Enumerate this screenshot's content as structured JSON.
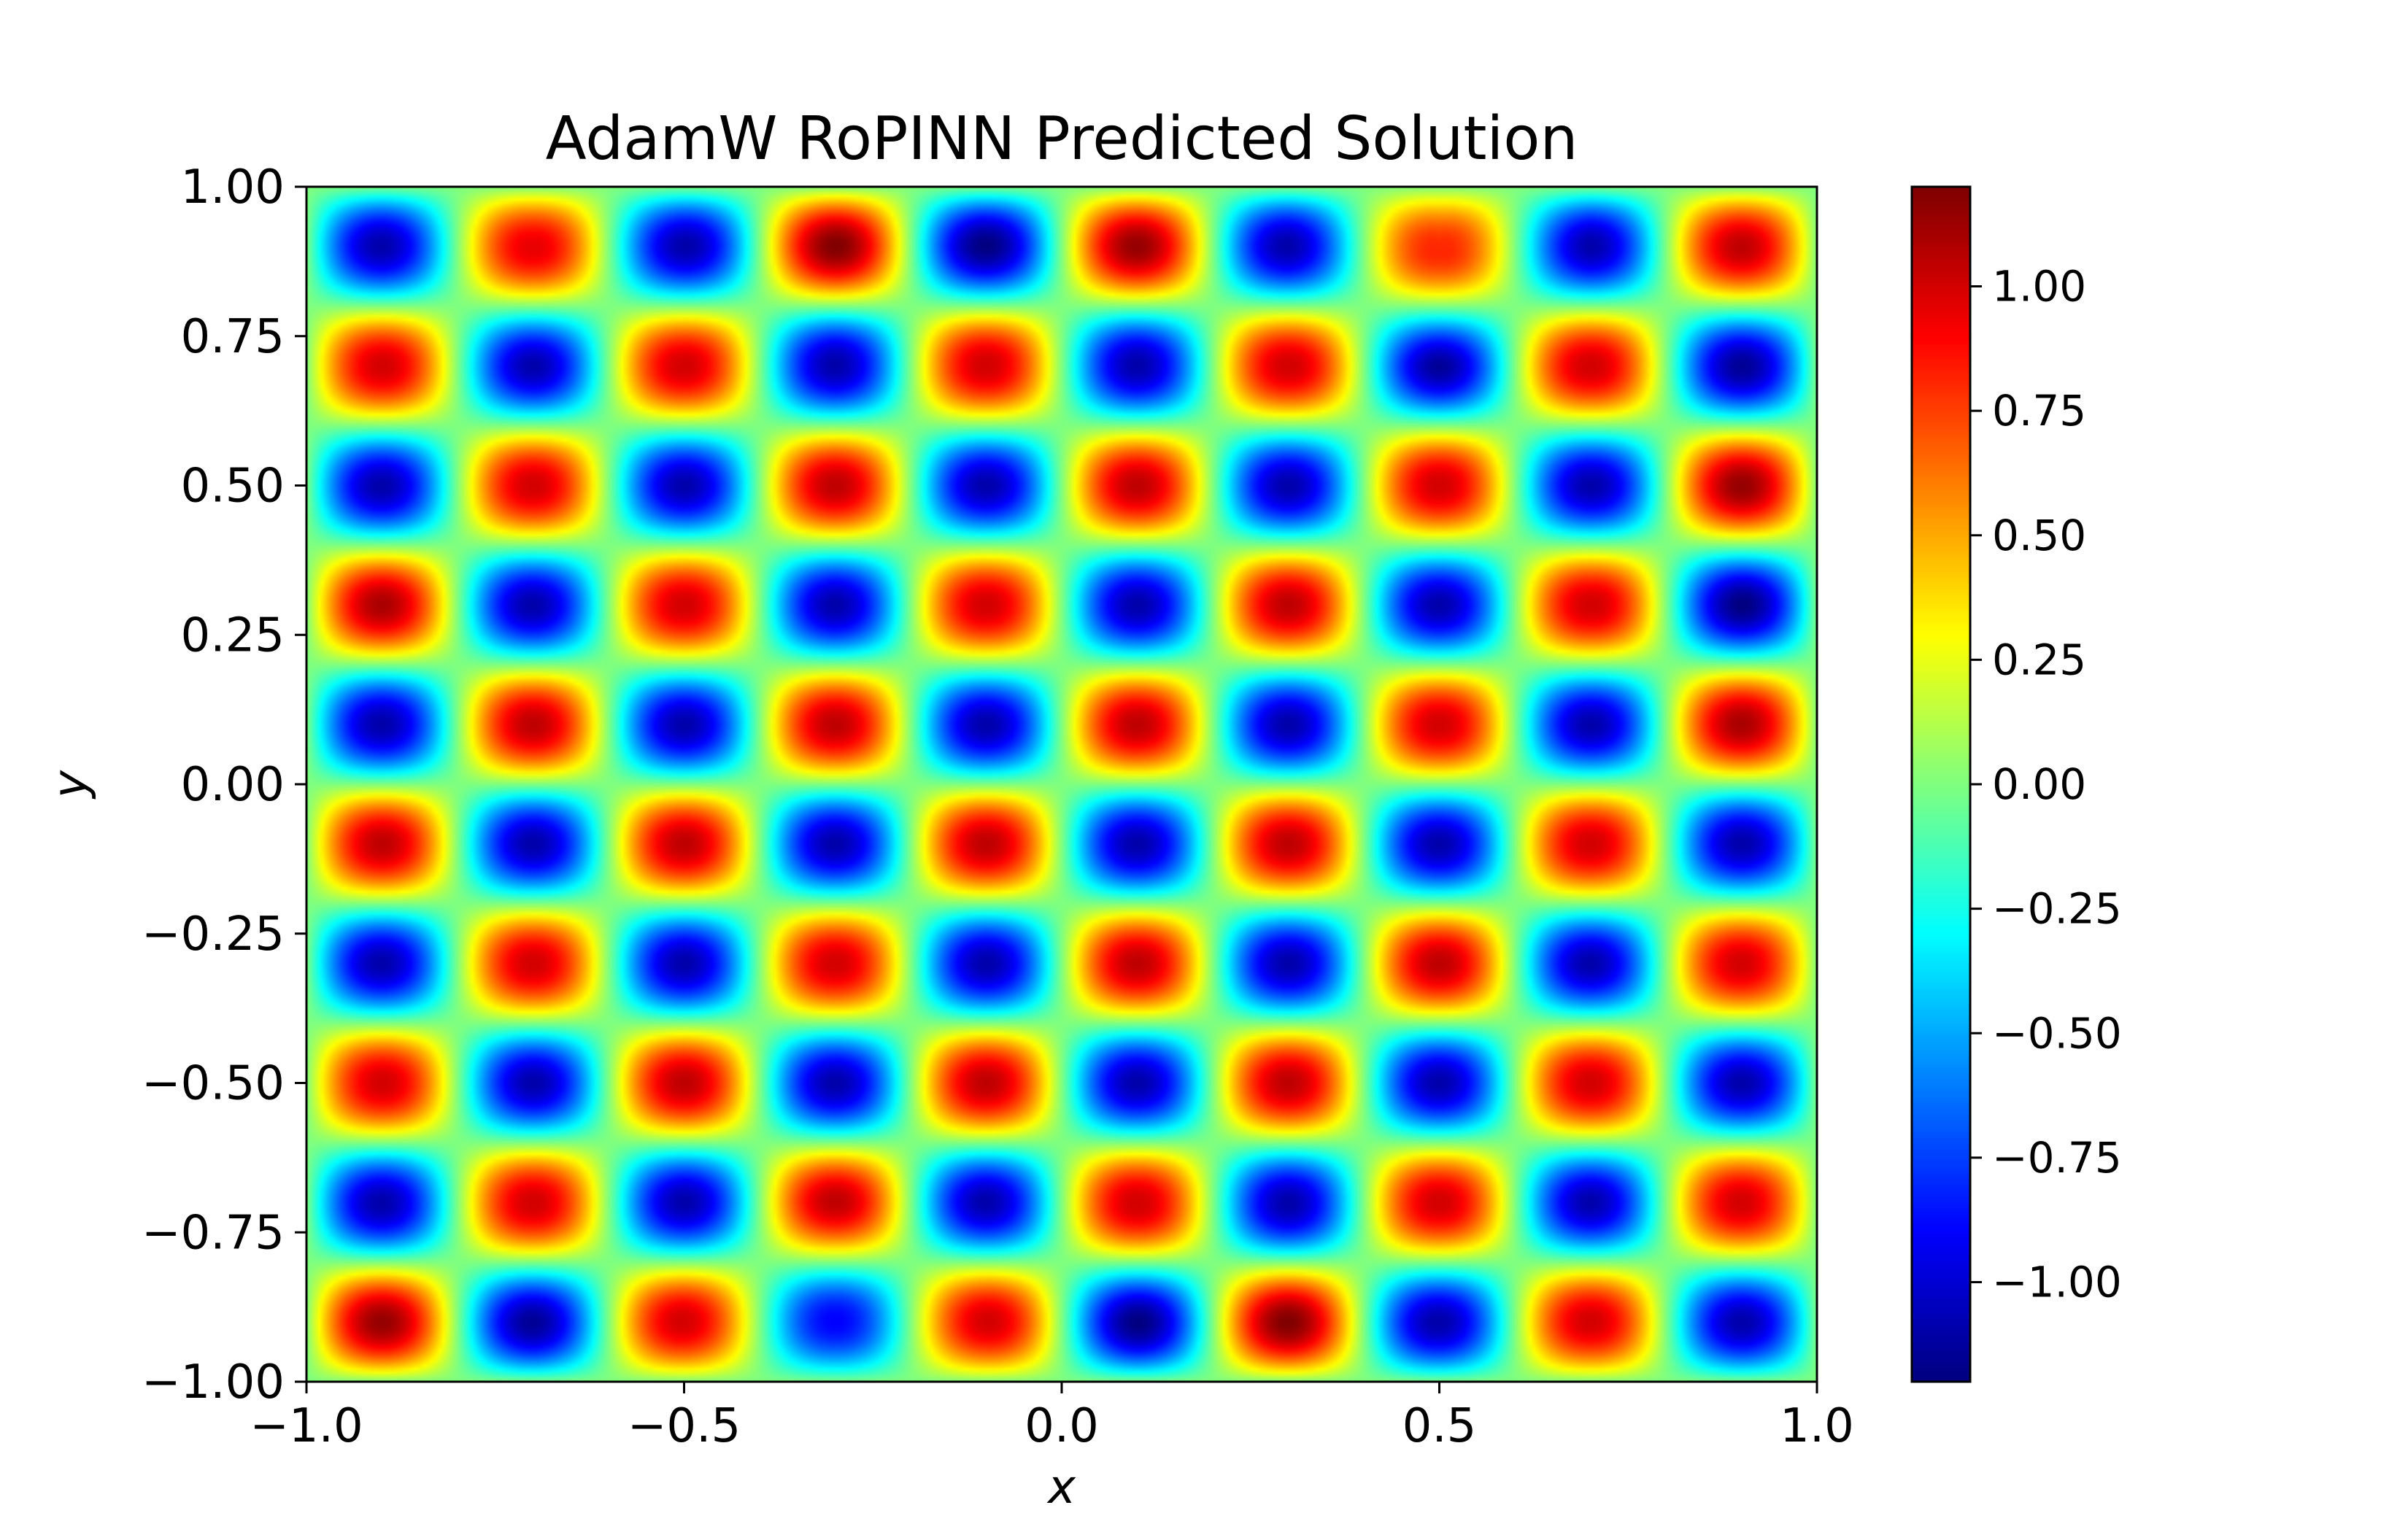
{
  "chart_data": {
    "type": "heatmap",
    "title": "AdamW RoPINN Predicted Solution",
    "xlabel": "x",
    "ylabel": "y",
    "xlim": [
      -1.0,
      1.0
    ],
    "ylim": [
      -1.0,
      1.0
    ],
    "x_ticks": [
      -1.0,
      -0.5,
      0.0,
      0.5,
      1.0
    ],
    "x_tick_labels": [
      "−1.0",
      "−0.5",
      "0.0",
      "0.5",
      "1.0"
    ],
    "y_ticks": [
      -1.0,
      -0.75,
      -0.5,
      -0.25,
      0.0,
      0.25,
      0.5,
      0.75,
      1.0
    ],
    "y_tick_labels": [
      "−1.00",
      "−0.75",
      "−0.50",
      "−0.25",
      "0.00",
      "0.25",
      "0.50",
      "0.75",
      "1.00"
    ],
    "colorbar": {
      "range": [
        -1.2,
        1.2
      ],
      "ticks": [
        -1.0,
        -0.75,
        -0.5,
        -0.25,
        0.0,
        0.25,
        0.5,
        0.75,
        1.0
      ],
      "tick_labels": [
        "−1.00",
        "−0.75",
        "−0.50",
        "−0.25",
        "0.00",
        "0.25",
        "0.50",
        "0.75",
        "1.00"
      ],
      "colormap": "jet"
    },
    "grid": false,
    "pattern": "checkerboard of peaks, amplitude about 1.1, peak centers at x = −0.9, −0.7, …, 0.9 and y = −0.9, −0.7, …, 0.9",
    "peak_x_centers": [
      -0.9,
      -0.7,
      -0.5,
      -0.3,
      -0.1,
      0.1,
      0.3,
      0.5,
      0.7,
      0.9
    ],
    "peak_y_centers": [
      0.9,
      0.7,
      0.5,
      0.3,
      0.1,
      -0.1,
      -0.3,
      -0.5,
      -0.7,
      -0.9
    ],
    "peak_values_rows_top_to_bottom": [
      [
        -1.1,
        0.95,
        -1.1,
        1.2,
        -1.2,
        1.15,
        -1.1,
        0.8,
        -1.1,
        1.05
      ],
      [
        1.0,
        -1.1,
        1.0,
        -1.1,
        1.0,
        -1.1,
        1.0,
        -1.15,
        1.0,
        -1.15
      ],
      [
        -1.1,
        1.0,
        -1.1,
        1.05,
        -1.1,
        1.05,
        -1.1,
        1.0,
        -1.1,
        1.15
      ],
      [
        1.1,
        -1.1,
        1.0,
        -1.1,
        1.0,
        -1.1,
        1.05,
        -1.1,
        1.0,
        -1.2
      ],
      [
        -1.1,
        1.05,
        -1.1,
        1.05,
        -1.1,
        1.05,
        -1.1,
        1.0,
        -1.1,
        1.1
      ],
      [
        1.05,
        -1.1,
        1.05,
        -1.1,
        1.05,
        -1.1,
        1.05,
        -1.1,
        1.0,
        -1.1
      ],
      [
        -1.1,
        1.0,
        -1.1,
        1.0,
        -1.1,
        1.05,
        -1.1,
        1.05,
        -1.1,
        1.0
      ],
      [
        1.0,
        -1.1,
        1.05,
        -1.1,
        1.05,
        -1.1,
        1.05,
        -1.1,
        1.0,
        -1.1
      ],
      [
        -1.1,
        1.0,
        -1.1,
        1.05,
        -1.1,
        1.0,
        -1.1,
        1.0,
        -1.1,
        1.0
      ],
      [
        1.15,
        -1.15,
        1.0,
        -0.9,
        1.0,
        -1.2,
        1.2,
        -1.1,
        1.0,
        -1.1
      ]
    ]
  }
}
